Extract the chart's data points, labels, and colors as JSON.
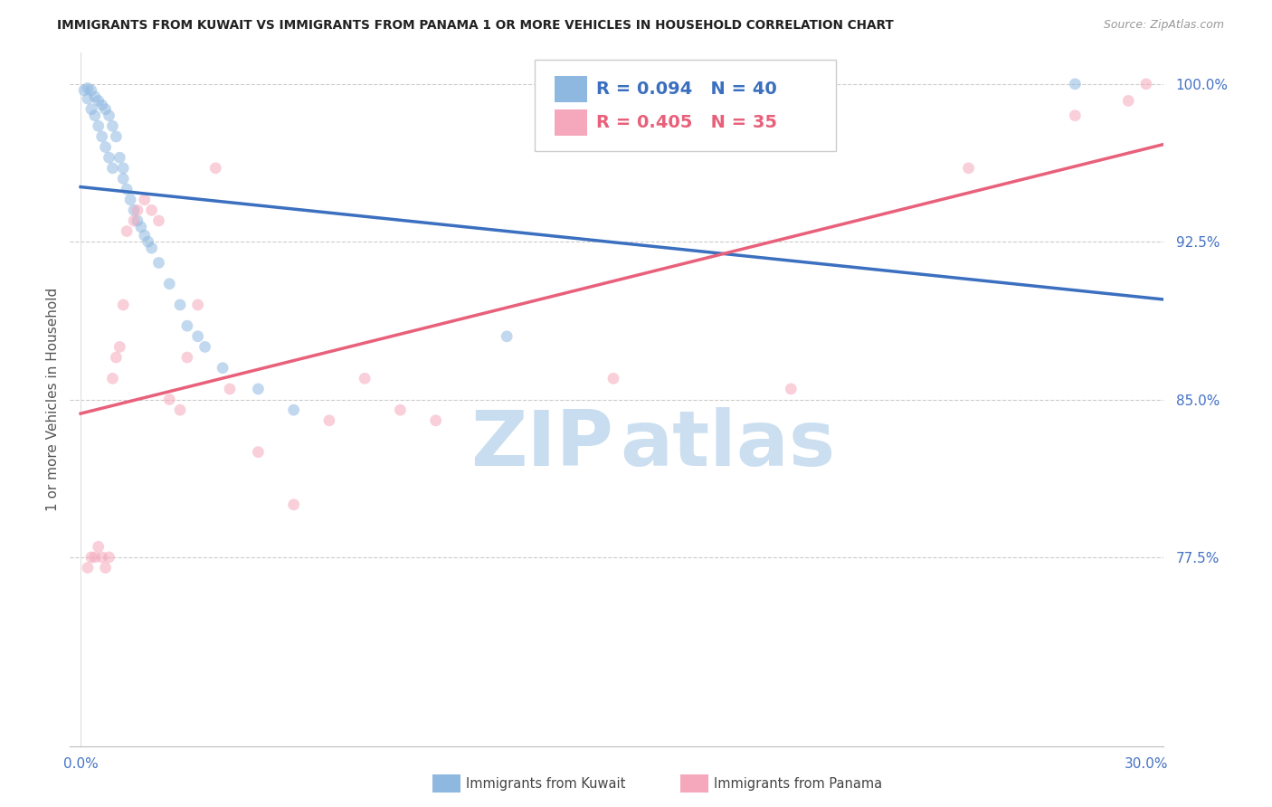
{
  "title": "IMMIGRANTS FROM KUWAIT VS IMMIGRANTS FROM PANAMA 1 OR MORE VEHICLES IN HOUSEHOLD CORRELATION CHART",
  "source": "Source: ZipAtlas.com",
  "ylabel": "1 or more Vehicles in Household",
  "legend_blue_r": "0.094",
  "legend_blue_n": "40",
  "legend_pink_r": "0.405",
  "legend_pink_n": "35",
  "legend_blue_label": "Immigrants from Kuwait",
  "legend_pink_label": "Immigrants from Panama",
  "xlim": [
    -0.003,
    0.305
  ],
  "ylim": [
    0.685,
    1.015
  ],
  "yticks": [
    0.775,
    0.85,
    0.925,
    1.0
  ],
  "ytick_labels": [
    "77.5%",
    "85.0%",
    "92.5%",
    "100.0%"
  ],
  "blue_scatter_color": "#8FB8E0",
  "pink_scatter_color": "#F5A8BC",
  "blue_line_color": "#3B6FBF",
  "pink_line_color": "#E8607A",
  "blue_dashed_color": "#AACCEE",
  "right_tick_color": "#4472C4",
  "grid_color": "#CCCCCC",
  "bg_color": "#FFFFFF",
  "title_color": "#222222",
  "marker_size": 85,
  "scatter_alpha": 0.55,
  "blue_x": [
    0.001,
    0.002,
    0.002,
    0.003,
    0.003,
    0.004,
    0.004,
    0.005,
    0.005,
    0.006,
    0.006,
    0.007,
    0.007,
    0.008,
    0.008,
    0.009,
    0.009,
    0.01,
    0.011,
    0.012,
    0.012,
    0.013,
    0.014,
    0.015,
    0.016,
    0.017,
    0.018,
    0.019,
    0.02,
    0.022,
    0.025,
    0.028,
    0.03,
    0.033,
    0.035,
    0.04,
    0.05,
    0.06,
    0.12,
    0.28
  ],
  "blue_y": [
    0.997,
    0.998,
    0.993,
    0.997,
    0.988,
    0.994,
    0.985,
    0.992,
    0.98,
    0.99,
    0.975,
    0.988,
    0.97,
    0.985,
    0.965,
    0.98,
    0.96,
    0.975,
    0.965,
    0.96,
    0.955,
    0.95,
    0.945,
    0.94,
    0.935,
    0.932,
    0.928,
    0.925,
    0.922,
    0.915,
    0.905,
    0.895,
    0.885,
    0.88,
    0.875,
    0.865,
    0.855,
    0.845,
    0.88,
    1.0
  ],
  "pink_x": [
    0.002,
    0.003,
    0.004,
    0.005,
    0.006,
    0.007,
    0.008,
    0.009,
    0.01,
    0.011,
    0.012,
    0.013,
    0.015,
    0.016,
    0.018,
    0.02,
    0.022,
    0.025,
    0.028,
    0.03,
    0.033,
    0.038,
    0.042,
    0.05,
    0.06,
    0.07,
    0.08,
    0.09,
    0.1,
    0.15,
    0.2,
    0.25,
    0.28,
    0.295,
    0.3
  ],
  "pink_y": [
    0.77,
    0.775,
    0.775,
    0.78,
    0.775,
    0.77,
    0.775,
    0.86,
    0.87,
    0.875,
    0.895,
    0.93,
    0.935,
    0.94,
    0.945,
    0.94,
    0.935,
    0.85,
    0.845,
    0.87,
    0.895,
    0.96,
    0.855,
    0.825,
    0.8,
    0.84,
    0.86,
    0.845,
    0.84,
    0.86,
    0.855,
    0.96,
    0.985,
    0.992,
    1.0
  ]
}
